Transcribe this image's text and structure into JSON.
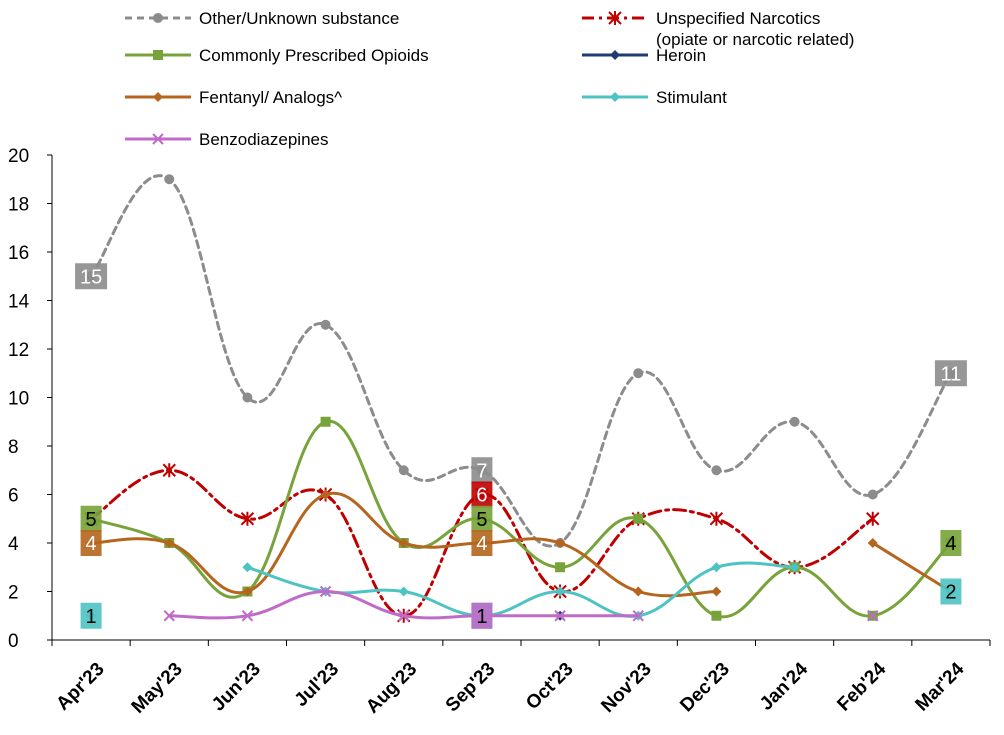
{
  "chart_data": {
    "type": "line",
    "title": "",
    "xlabel": "",
    "ylabel": "",
    "categories": [
      "Apr'23",
      "May'23",
      "Jun'23",
      "Jul'23",
      "Aug'23",
      "Sep'23",
      "Oct'23",
      "Nov'23",
      "Dec'23",
      "Jan'24",
      "Feb'24",
      "Mar'24"
    ],
    "ylim": [
      0,
      20
    ],
    "yticks": [
      "0",
      "2",
      "4",
      "6",
      "8",
      "10",
      "12",
      "14",
      "16",
      "18",
      "20"
    ],
    "grid": false,
    "legend_position": "top",
    "series": [
      {
        "name": "Other/Unknown substance",
        "legend_name": "Other/Unknown substance",
        "color": "#8c8c8c",
        "dash": "dashed",
        "marker": "circle",
        "values": [
          15,
          19,
          10,
          13,
          7,
          7,
          4,
          11,
          7,
          9,
          6,
          11
        ]
      },
      {
        "name": "Unspecified Narcotics (opiate or narcotic related)",
        "legend_name": "Unspecified Narcotics",
        "legend_name_line2": "(opiate or narcotic related)",
        "color": "#c00000",
        "dash": "dashdot",
        "marker": "asterisk",
        "values": [
          5,
          7,
          5,
          6,
          1,
          6,
          2,
          5,
          5,
          3,
          5,
          null
        ]
      },
      {
        "name": "Commonly Prescribed Opioids",
        "legend_name": "Commonly Prescribed Opioids",
        "color": "#77a33a",
        "dash": "solid",
        "marker": "square",
        "values": [
          5,
          4,
          2,
          9,
          4,
          5,
          3,
          5,
          1,
          3,
          1,
          4
        ]
      },
      {
        "name": "Heroin",
        "legend_name": "Heroin",
        "color": "#1f3b73",
        "dash": "solid",
        "marker": "diamond",
        "values": [
          null,
          null,
          null,
          null,
          null,
          null,
          1,
          null,
          null,
          null,
          null,
          null
        ]
      },
      {
        "name": "Fentanyl/ Analogs^",
        "legend_name": "Fentanyl/ Analogs^",
        "color": "#b5651d",
        "dash": "solid",
        "marker": "diamond",
        "values": [
          4,
          4,
          2,
          6,
          4,
          4,
          4,
          2,
          2,
          null,
          4,
          2
        ]
      },
      {
        "name": "Stimulant",
        "legend_name": "Stimulant",
        "color": "#4ec3c3",
        "dash": "solid",
        "marker": "diamond",
        "values": [
          1,
          null,
          3,
          2,
          2,
          1,
          2,
          1,
          3,
          3,
          null,
          2
        ]
      },
      {
        "name": "Benzodiazepines",
        "legend_name": "Benzodiazepines",
        "color": "#c06bc8",
        "dash": "solid",
        "marker": "x",
        "values": [
          null,
          1,
          1,
          2,
          1,
          1,
          1,
          1,
          null,
          null,
          1,
          null
        ]
      }
    ],
    "data_labels": [
      {
        "series": 0,
        "index": 0,
        "text": "15"
      },
      {
        "series": 0,
        "index": 5,
        "text": "7"
      },
      {
        "series": 0,
        "index": 11,
        "text": "11"
      },
      {
        "series": 1,
        "index": 5,
        "text": "6"
      },
      {
        "series": 2,
        "index": 0,
        "text": "5"
      },
      {
        "series": 2,
        "index": 5,
        "text": "5"
      },
      {
        "series": 2,
        "index": 11,
        "text": "4"
      },
      {
        "series": 4,
        "index": 0,
        "text": "4"
      },
      {
        "series": 4,
        "index": 5,
        "text": "4"
      },
      {
        "series": 5,
        "index": 0,
        "text": "1"
      },
      {
        "series": 5,
        "index": 5,
        "text": "1"
      },
      {
        "series": 5,
        "index": 11,
        "text": "2"
      },
      {
        "series": 6,
        "index": 5,
        "text": "1"
      }
    ]
  }
}
